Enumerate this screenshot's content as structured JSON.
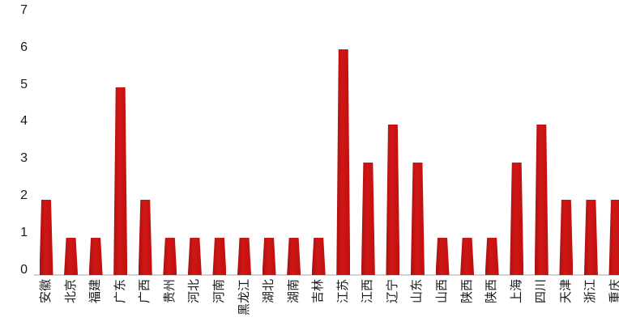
{
  "chart_data": {
    "type": "bar",
    "title": "",
    "xlabel": "",
    "ylabel": "",
    "categories": [
      "安徽",
      "北京",
      "福建",
      "广东",
      "广西",
      "贵州",
      "河北",
      "河南",
      "黑龙江",
      "湖北",
      "湖南",
      "吉林",
      "江苏",
      "江西",
      "辽宁",
      "山东",
      "山西",
      "陕西",
      "陕西",
      "上海",
      "四川",
      "天津",
      "浙江",
      "重庆"
    ],
    "values": [
      2,
      1,
      1,
      5,
      2,
      1,
      1,
      1,
      1,
      1,
      1,
      1,
      6,
      3,
      4,
      3,
      1,
      1,
      1,
      3,
      4,
      2,
      2,
      2
    ],
    "ylim": [
      0,
      7
    ],
    "yticks": [
      0,
      1,
      2,
      3,
      4,
      5,
      6,
      7
    ],
    "grid": false,
    "legend": null,
    "bar_color": "#c41311",
    "axis_line_color": "#d2d2d2",
    "tick_label_color": "#1a1a1a",
    "x_label_rotation_degrees": -90
  }
}
